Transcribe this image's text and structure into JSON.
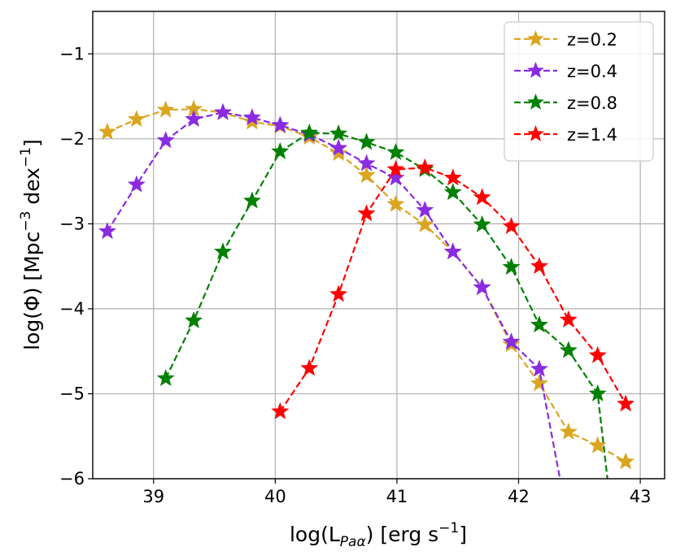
{
  "chart_data": {
    "type": "line",
    "xlabel_text": "log(L",
    "xlabel_subscript": "Paα",
    "xlabel_units": ") [erg s",
    "xlabel_exp": "−1",
    "xlabel_close": "]",
    "ylabel_text": "log(Φ) [Mpc",
    "ylabel_exp1": "−3",
    "ylabel_mid": " dex",
    "ylabel_exp2": "−1",
    "ylabel_close": "]",
    "xlim": [
      38.5,
      43.2
    ],
    "ylim": [
      -6,
      -0.5
    ],
    "xticks": [
      39,
      40,
      41,
      42,
      43
    ],
    "yticks": [
      -1,
      -2,
      -3,
      -4,
      -5,
      -6
    ],
    "xtick_labels": [
      "39",
      "40",
      "41",
      "42",
      "43"
    ],
    "ytick_labels": [
      "−1",
      "−2",
      "−3",
      "−4",
      "−5",
      "−6"
    ],
    "grid": true,
    "legend_position": "top-right",
    "series": [
      {
        "name": "z=0.2",
        "color": "#DAA520",
        "x": [
          38.62,
          38.86,
          39.1,
          39.33,
          39.57,
          39.81,
          40.04,
          40.28,
          40.52,
          40.75,
          40.99,
          41.23,
          41.46,
          41.7,
          41.94,
          42.17,
          42.41,
          42.65,
          42.88
        ],
        "y": [
          -1.92,
          -1.77,
          -1.66,
          -1.65,
          -1.69,
          -1.8,
          -1.85,
          -1.98,
          -2.17,
          -2.43,
          -2.77,
          -3.01,
          -3.33,
          -3.75,
          -4.42,
          -4.88,
          -5.45,
          -5.61,
          -5.8
        ]
      },
      {
        "name": "z=0.4",
        "color": "#8A2BE2",
        "x": [
          38.62,
          38.86,
          39.1,
          39.33,
          39.57,
          39.81,
          40.04,
          40.28,
          40.52,
          40.75,
          40.99,
          41.23,
          41.46,
          41.7,
          41.94,
          42.17,
          42.34
        ],
        "y": [
          -3.09,
          -2.54,
          -2.02,
          -1.77,
          -1.69,
          -1.75,
          -1.84,
          -1.95,
          -2.11,
          -2.29,
          -2.46,
          -2.84,
          -3.33,
          -3.75,
          -4.39,
          -4.71,
          -6.0
        ],
        "marker_count": 16
      },
      {
        "name": "z=0.8",
        "color": "#008000",
        "x": [
          39.1,
          39.33,
          39.57,
          39.81,
          40.04,
          40.28,
          40.52,
          40.75,
          40.99,
          41.23,
          41.46,
          41.7,
          41.94,
          42.17,
          42.41,
          42.65,
          42.73
        ],
        "y": [
          -4.82,
          -4.14,
          -3.33,
          -2.73,
          -2.15,
          -1.93,
          -1.94,
          -2.04,
          -2.16,
          -2.36,
          -2.63,
          -3.01,
          -3.51,
          -4.19,
          -4.49,
          -5.0,
          -6.0
        ],
        "marker_count": 16
      },
      {
        "name": "z=1.4",
        "color": "#FF0000",
        "x": [
          40.04,
          40.28,
          40.52,
          40.75,
          40.99,
          41.23,
          41.46,
          41.7,
          41.94,
          42.17,
          42.41,
          42.65,
          42.88
        ],
        "y": [
          -5.21,
          -4.7,
          -3.83,
          -2.88,
          -2.36,
          -2.34,
          -2.46,
          -2.69,
          -3.03,
          -3.5,
          -4.13,
          -4.55,
          -5.12
        ]
      }
    ]
  }
}
